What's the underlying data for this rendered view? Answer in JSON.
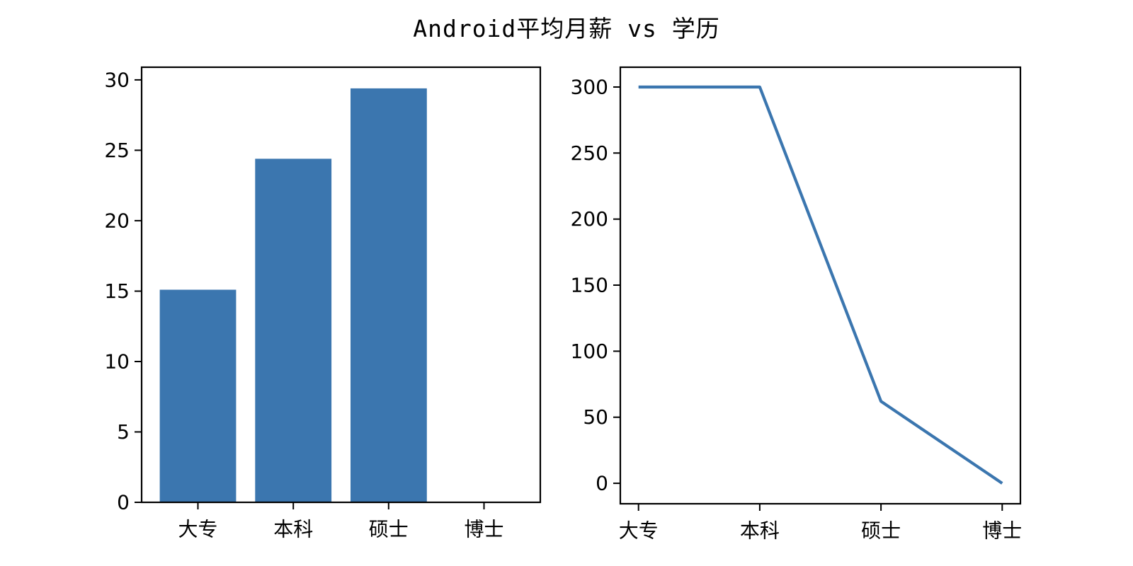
{
  "page": {
    "title": "Android平均月薪 vs 学历",
    "background": "#ffffff"
  },
  "chart_data": [
    {
      "id": "salary-bar",
      "type": "bar",
      "title": "Android平均月薪 vs 学历",
      "categories": [
        "大专",
        "本科",
        "硕士",
        "博士"
      ],
      "values": [
        15.1,
        24.4,
        29.4,
        0
      ],
      "xlabel": "",
      "ylabel": "",
      "yticks": [
        0,
        5,
        10,
        15,
        20,
        25,
        30
      ],
      "ylim": [
        0,
        30.9
      ],
      "xlim": [
        -0.59,
        3.59
      ],
      "bar_width": 0.8,
      "bar_color": "#3b76af",
      "axis_color": "#000000",
      "tick_label_color": "#000000",
      "grid": false,
      "legend": "none"
    },
    {
      "id": "count-line",
      "type": "line",
      "title": "Android平均月薪 vs 学历",
      "categories": [
        "大专",
        "本科",
        "硕士",
        "博士"
      ],
      "values": [
        300,
        300,
        62,
        0
      ],
      "xlabel": "",
      "ylabel": "",
      "yticks": [
        0,
        50,
        100,
        150,
        200,
        250,
        300
      ],
      "ylim": [
        -15.5,
        315
      ],
      "xlim": [
        -0.15,
        3.15
      ],
      "line_color": "#3b76af",
      "line_width": 4.2,
      "axis_color": "#000000",
      "tick_label_color": "#000000",
      "grid": false,
      "legend": "none"
    }
  ]
}
